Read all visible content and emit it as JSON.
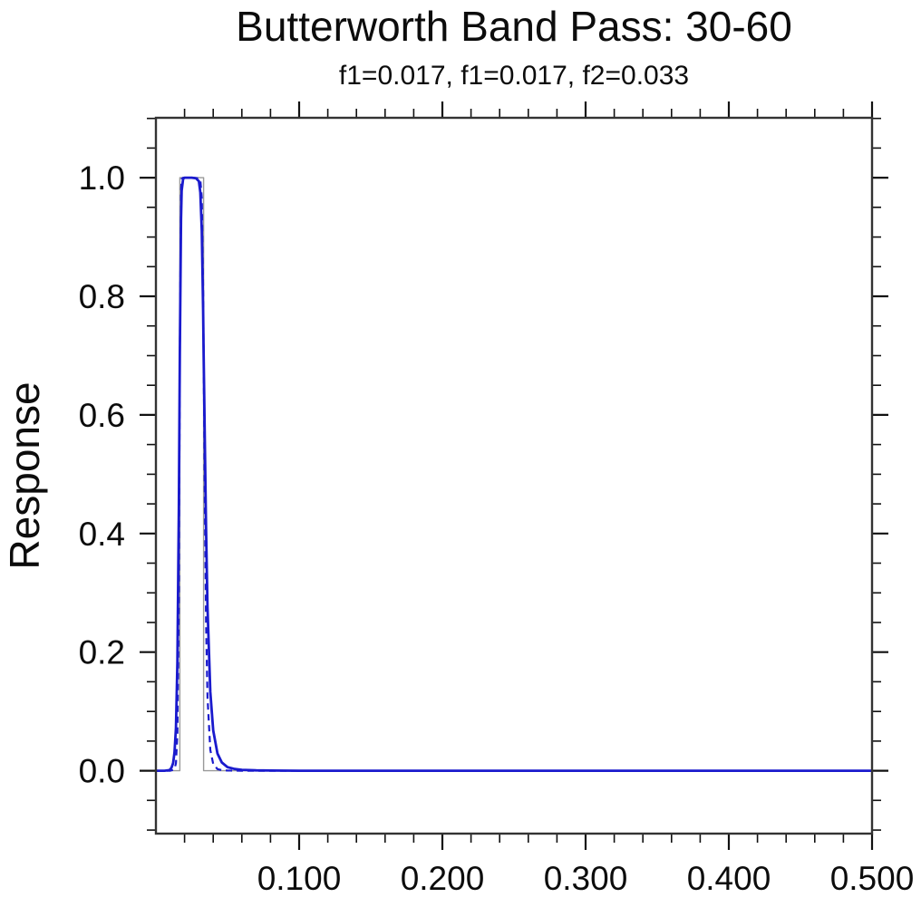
{
  "title": "Butterworth Band Pass: 30-60",
  "subtitle": "f1=0.017, f1=0.017, f2=0.033",
  "ylabel": "Response",
  "colors": {
    "background": "#ffffff",
    "curve_blue": "#1a1acd",
    "ideal_gray": "#999999",
    "frame": "#333333",
    "tick": "#111111",
    "text": "#0c0c0c"
  },
  "chart_data": {
    "type": "line",
    "title": "Butterworth Band Pass: 30-60",
    "subtitle": "f1=0.017, f1=0.017, f2=0.033",
    "xlabel": "",
    "ylabel": "Response",
    "xlim": [
      0.0,
      0.5
    ],
    "ylim": [
      -0.106,
      1.101
    ],
    "grid": false,
    "legend": null,
    "band": {
      "f1": 0.017,
      "f2": 0.033
    },
    "x_major_ticks": [
      0.1,
      0.2,
      0.3,
      0.4,
      0.5
    ],
    "x_tick_labels": [
      "0.100",
      "0.200",
      "0.300",
      "0.400",
      "0.500"
    ],
    "x_minor_step": 0.02,
    "y_major_ticks": [
      0.0,
      0.2,
      0.4,
      0.6,
      0.8,
      1.0
    ],
    "y_tick_labels": [
      "0.0",
      "0.2",
      "0.4",
      "0.6",
      "0.8",
      "1.0"
    ],
    "y_minor_step": 0.05,
    "y_minor_range": [
      -0.1,
      1.1
    ],
    "series": [
      {
        "name": "ideal-band-pass",
        "style": "solid",
        "color": "#999999",
        "width": 1.4,
        "points": [
          [
            0,
            0
          ],
          [
            0.0167,
            0
          ],
          [
            0.0167,
            1
          ],
          [
            0.0333,
            1
          ],
          [
            0.0333,
            0
          ],
          [
            0.5,
            0
          ]
        ]
      },
      {
        "name": "butterworth-response-solid",
        "style": "solid",
        "color": "#1a1acd",
        "width": 2.8,
        "points": [
          [
            0,
            0
          ],
          [
            0.006,
            0
          ],
          [
            0.009,
            0.001
          ],
          [
            0.01,
            0.002
          ],
          [
            0.011,
            0.006
          ],
          [
            0.012,
            0.013
          ],
          [
            0.013,
            0.031
          ],
          [
            0.014,
            0.072
          ],
          [
            0.015,
            0.183
          ],
          [
            0.016,
            0.443
          ],
          [
            0.0167,
            0.707
          ],
          [
            0.0175,
            0.93
          ],
          [
            0.018,
            0.978
          ],
          [
            0.019,
            0.998
          ],
          [
            0.02,
            1.0
          ],
          [
            0.022,
            1.0
          ],
          [
            0.025,
            1.0
          ],
          [
            0.028,
            0.999
          ],
          [
            0.03,
            0.994
          ],
          [
            0.031,
            0.975
          ],
          [
            0.032,
            0.911
          ],
          [
            0.033,
            0.774
          ],
          [
            0.0333,
            0.707
          ],
          [
            0.034,
            0.585
          ],
          [
            0.035,
            0.41
          ],
          [
            0.036,
            0.276
          ],
          [
            0.038,
            0.133
          ],
          [
            0.04,
            0.068
          ],
          [
            0.043,
            0.029
          ],
          [
            0.046,
            0.014
          ],
          [
            0.05,
            0.006
          ],
          [
            0.055,
            0.003
          ],
          [
            0.06,
            0.0015
          ],
          [
            0.07,
            0.0006
          ],
          [
            0.08,
            0.0003
          ],
          [
            0.1,
            0.0001
          ],
          [
            0.15,
            0
          ],
          [
            0.2,
            0
          ],
          [
            0.3,
            0
          ],
          [
            0.4,
            0
          ],
          [
            0.5,
            0
          ]
        ]
      },
      {
        "name": "butterworth-response-dashed",
        "style": "dashed",
        "color": "#1a1acd",
        "width": 2.2,
        "points": [
          [
            0,
            0
          ],
          [
            0.01,
            0
          ],
          [
            0.012,
            0.0015
          ],
          [
            0.013,
            0.0032
          ],
          [
            0.014,
            0.0126
          ],
          [
            0.015,
            0.062
          ],
          [
            0.016,
            0.296
          ],
          [
            0.0167,
            0.707
          ],
          [
            0.0175,
            0.978
          ],
          [
            0.018,
            0.998
          ],
          [
            0.019,
            1.0
          ],
          [
            0.025,
            1.0
          ],
          [
            0.03,
            0.999
          ],
          [
            0.031,
            0.996
          ],
          [
            0.032,
            0.966
          ],
          [
            0.033,
            0.814
          ],
          [
            0.0333,
            0.707
          ],
          [
            0.034,
            0.5
          ],
          [
            0.035,
            0.25
          ],
          [
            0.036,
            0.124
          ],
          [
            0.038,
            0.035
          ],
          [
            0.04,
            0.0115
          ],
          [
            0.043,
            0.0028
          ],
          [
            0.046,
            0.001
          ],
          [
            0.05,
            0.0004
          ],
          [
            0.06,
            0.0001
          ],
          [
            0.08,
            0
          ],
          [
            0.1,
            0
          ],
          [
            0.2,
            0
          ],
          [
            0.3,
            0
          ],
          [
            0.4,
            0
          ],
          [
            0.5,
            0
          ]
        ]
      }
    ]
  }
}
